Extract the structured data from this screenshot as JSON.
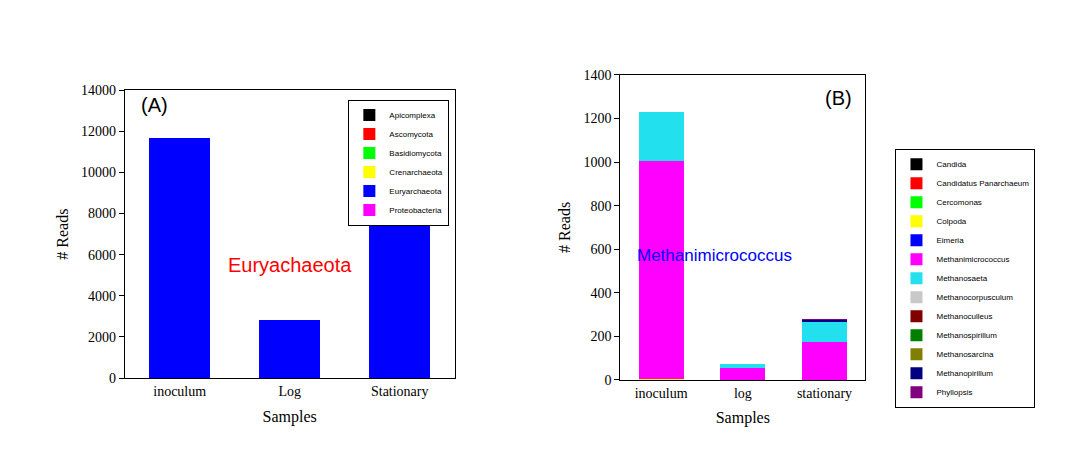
{
  "chart_data": [
    {
      "type": "bar",
      "stacked": true,
      "grid": false,
      "legend": "upper right",
      "x_label": "Samples",
      "y_label": "# Reads",
      "categories": [
        "inoculum",
        "Log",
        "Stationary"
      ],
      "ylim": [
        0,
        14000
      ],
      "yticks": [
        0,
        2000,
        4000,
        6000,
        8000,
        10000,
        12000,
        14000
      ],
      "annotations": [
        {
          "text": "(A)",
          "color": "#000000"
        },
        {
          "text": "Euryachaeota",
          "color": "#ff0000"
        }
      ],
      "series": [
        {
          "name": "Apicomplexa",
          "color": "#000000",
          "values": [
            0,
            0,
            0
          ]
        },
        {
          "name": "Ascomycota",
          "color": "#ff0000",
          "values": [
            0,
            0,
            0
          ]
        },
        {
          "name": "Basidiomycota",
          "color": "#00ff00",
          "values": [
            0,
            0,
            0
          ]
        },
        {
          "name": "Crenarchaeota",
          "color": "#ffff00",
          "values": [
            0,
            0,
            0
          ]
        },
        {
          "name": "Euryarchaeota",
          "color": "#0000ff",
          "values": [
            11700,
            2800,
            7400
          ]
        },
        {
          "name": "Proteobacteria",
          "color": "#ff00ff",
          "values": [
            0,
            0,
            0
          ]
        }
      ]
    },
    {
      "type": "bar",
      "stacked": true,
      "grid": false,
      "legend": "outside right",
      "x_label": "Samples",
      "y_label": "# Reads",
      "categories": [
        "inoculum",
        "log",
        "stationary"
      ],
      "ylim": [
        0,
        1400
      ],
      "yticks": [
        0,
        200,
        400,
        600,
        800,
        1000,
        1200,
        1400
      ],
      "annotations": [
        {
          "text": "(B)",
          "color": "#000000"
        },
        {
          "text": "Methanimicrococcus",
          "color": "#0000ff"
        }
      ],
      "series": [
        {
          "name": "Candida",
          "color": "#000000",
          "values": [
            0,
            0,
            0
          ]
        },
        {
          "name": "Candidatus Panarchaeum",
          "color": "#ff0000",
          "values": [
            0,
            0,
            0
          ]
        },
        {
          "name": "Cercomonas",
          "color": "#00ff00",
          "values": [
            0,
            0,
            0
          ]
        },
        {
          "name": "Colpoda",
          "color": "#ffff00",
          "values": [
            5,
            0,
            0
          ]
        },
        {
          "name": "Eimeria",
          "color": "#0000ff",
          "values": [
            0,
            0,
            0
          ]
        },
        {
          "name": "Methanimicrococcus",
          "color": "#ff00ff",
          "values": [
            1000,
            55,
            175
          ]
        },
        {
          "name": "Methanosaeta",
          "color": "#22e0ee",
          "values": [
            225,
            18,
            90
          ]
        },
        {
          "name": "Methanocorpusculum",
          "color": "#c8c8c8",
          "values": [
            0,
            0,
            0
          ]
        },
        {
          "name": "Methanoculleus",
          "color": "#800000",
          "values": [
            0,
            0,
            0
          ]
        },
        {
          "name": "Methanospirillum",
          "color": "#008000",
          "values": [
            0,
            0,
            0
          ]
        },
        {
          "name": "Methanosarcina",
          "color": "#808000",
          "values": [
            0,
            0,
            0
          ]
        },
        {
          "name": "Methanopirillum",
          "color": "#000080",
          "values": [
            0,
            0,
            10
          ]
        },
        {
          "name": "Phyllopsis",
          "color": "#800080",
          "values": [
            0,
            0,
            5
          ]
        }
      ]
    }
  ]
}
